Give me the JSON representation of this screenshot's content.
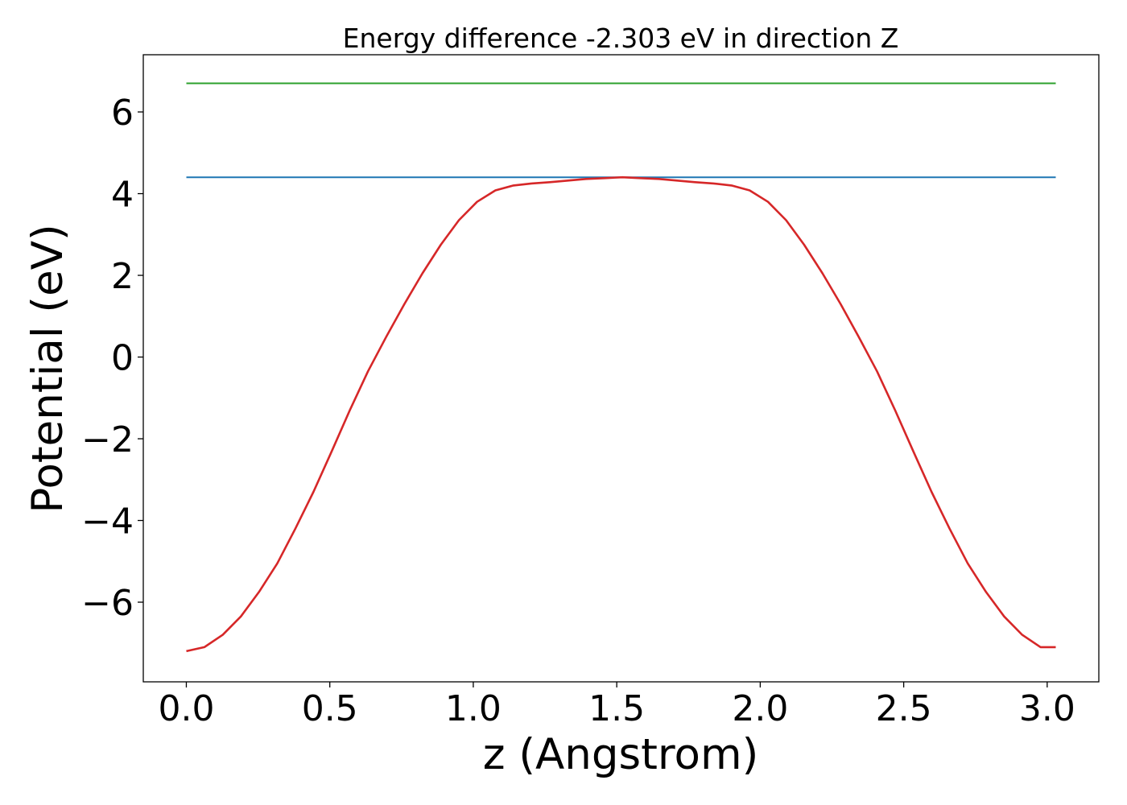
{
  "chart_data": {
    "type": "line",
    "title": "Energy difference -2.303 eV in direction Z",
    "xlabel": "z (Angstrom)",
    "ylabel": "Potential (eV)",
    "xlim": [
      -0.15,
      3.18
    ],
    "ylim": [
      -7.95,
      7.4
    ],
    "xticks": [
      0.0,
      0.5,
      1.0,
      1.5,
      2.0,
      2.5,
      3.0
    ],
    "xtick_labels": [
      "0.0",
      "0.5",
      "1.0",
      "1.5",
      "2.0",
      "2.5",
      "3.0"
    ],
    "yticks": [
      -6,
      -4,
      -2,
      0,
      2,
      4,
      6
    ],
    "ytick_labels": [
      "−6",
      "−4",
      "−2",
      "0",
      "2",
      "4",
      "6"
    ],
    "grid": false,
    "series": [
      {
        "color": "#2ca02c",
        "x": [
          0.0,
          3.03
        ],
        "y": [
          6.7,
          6.7
        ]
      },
      {
        "color": "#1f77b4",
        "x": [
          0.0,
          3.03
        ],
        "y": [
          4.4,
          4.4
        ]
      },
      {
        "color": "#d62728",
        "x": [
          0.0,
          0.063,
          0.127,
          0.19,
          0.253,
          0.317,
          0.38,
          0.443,
          0.507,
          0.57,
          0.633,
          0.697,
          0.76,
          0.823,
          0.887,
          0.95,
          1.013,
          1.077,
          1.14,
          1.203,
          1.267,
          1.33,
          1.393,
          1.457,
          1.52,
          1.583,
          1.647,
          1.71,
          1.773,
          1.837,
          1.9,
          1.963,
          2.027,
          2.09,
          2.153,
          2.217,
          2.28,
          2.343,
          2.407,
          2.47,
          2.533,
          2.597,
          2.66,
          2.723,
          2.787,
          2.85,
          2.913,
          2.977,
          3.03
        ],
        "y": [
          -7.2,
          -7.1,
          -6.8,
          -6.35,
          -5.75,
          -5.05,
          -4.2,
          -3.3,
          -2.3,
          -1.3,
          -0.35,
          0.5,
          1.3,
          2.05,
          2.75,
          3.35,
          3.8,
          4.08,
          4.2,
          4.25,
          4.28,
          4.32,
          4.36,
          4.38,
          4.4,
          4.38,
          4.36,
          4.32,
          4.28,
          4.25,
          4.2,
          4.08,
          3.8,
          3.35,
          2.75,
          2.05,
          1.3,
          0.5,
          -0.35,
          -1.3,
          -2.3,
          -3.3,
          -4.2,
          -5.05,
          -5.75,
          -6.35,
          -6.8,
          -7.1,
          -7.1
        ]
      }
    ]
  }
}
